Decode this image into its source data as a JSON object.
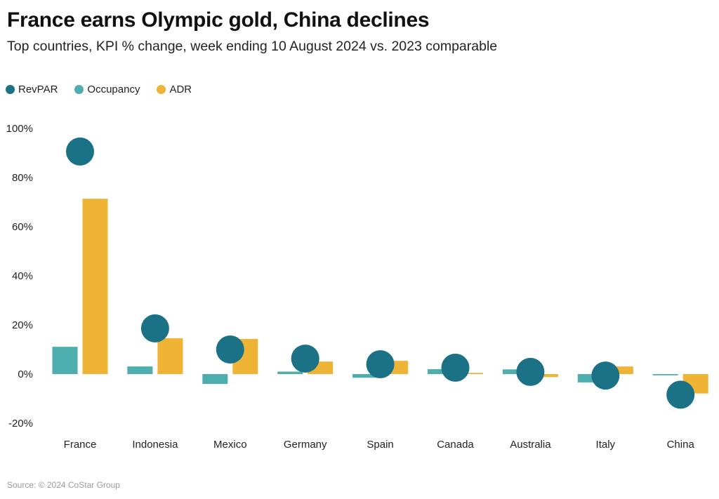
{
  "chart_data": {
    "type": "bar",
    "title": "France earns Olympic gold, China declines",
    "subtitle": "Top countries, KPI % change, week ending 10 August 2024 vs. 2023 comparable",
    "xlabel": "",
    "ylabel": "",
    "ylim": [
      -20,
      100
    ],
    "yticks": [
      100,
      80,
      60,
      40,
      20,
      0,
      -20
    ],
    "ytick_labels": [
      "100%",
      "80%",
      "60%",
      "40%",
      "20%",
      "0%",
      "-20%"
    ],
    "grid": false,
    "legend_position": "top-left",
    "categories": [
      "France",
      "Indonesia",
      "Mexico",
      "Germany",
      "Spain",
      "Canada",
      "Australia",
      "Italy",
      "China"
    ],
    "series": [
      {
        "name": "RevPAR",
        "mark": "dot",
        "color": "#1b7287",
        "values": [
          90.6,
          18.6,
          10.0,
          6.3,
          4.0,
          2.6,
          0.9,
          -0.6,
          -8.4
        ]
      },
      {
        "name": "Occupancy",
        "mark": "bar",
        "color": "#4eaead",
        "values": [
          11.1,
          3.1,
          -4.0,
          1.0,
          -1.5,
          2.0,
          1.9,
          -3.4,
          -0.5
        ]
      },
      {
        "name": "ADR",
        "mark": "bar",
        "color": "#efb436",
        "values": [
          71.4,
          14.6,
          14.3,
          5.1,
          5.4,
          0.5,
          -1.2,
          3.1,
          -7.9
        ]
      }
    ]
  },
  "source": "Source: © 2024 CoStar Group"
}
